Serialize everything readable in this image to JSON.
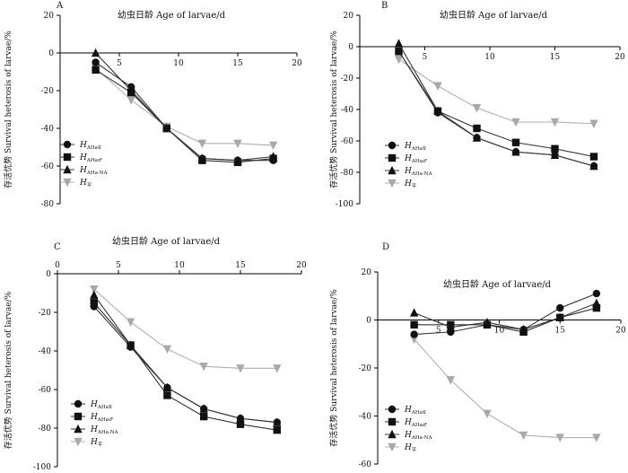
{
  "chart_data": [
    {
      "type": "line",
      "panel": "A",
      "title": "",
      "xlabel": "幼虫日龄 Age of larvae/d",
      "ylabel": "存活优势 Survival heterosis of larvae/%",
      "xlim": [
        0,
        20
      ],
      "ylim": [
        -80,
        20
      ],
      "xticks": [
        5,
        10,
        15,
        20
      ],
      "yticks": [
        20,
        0,
        -20,
        -40,
        -60,
        -80
      ],
      "legend_position": "bottom-left",
      "series": [
        {
          "name": "H",
          "sub": "AHa♀",
          "marker": "circle",
          "x": [
            3,
            6,
            9,
            12,
            15,
            18
          ],
          "values": [
            -5,
            -18,
            -40,
            -56,
            -57,
            -57
          ]
        },
        {
          "name": "H",
          "sub": "AHa♂",
          "marker": "square",
          "x": [
            3,
            6,
            9,
            12,
            15,
            18
          ],
          "values": [
            -9,
            -21,
            -40,
            -57,
            -58,
            -56
          ]
        },
        {
          "name": "H",
          "sub": "AHa-NA",
          "marker": "triangle",
          "x": [
            3,
            6,
            9,
            12,
            15,
            18
          ],
          "values": [
            0,
            -20,
            -40,
            -56,
            -57,
            -55
          ]
        },
        {
          "name": "H",
          "sub": "平",
          "marker": "triangle-down",
          "x": [
            3,
            6,
            9,
            12,
            15,
            18
          ],
          "values": [
            -8,
            -25,
            -39,
            -48,
            -48,
            -49
          ]
        }
      ]
    },
    {
      "type": "line",
      "panel": "B",
      "title": "",
      "xlabel": "幼虫日龄 Age of larvae/d",
      "ylabel": "存活优势 Survival heterosis of larvae/%",
      "xlim": [
        0,
        20
      ],
      "ylim": [
        -100,
        20
      ],
      "xticks": [
        5,
        10,
        15,
        20
      ],
      "yticks": [
        20,
        0,
        -20,
        -40,
        -60,
        -80,
        -100
      ],
      "legend_position": "bottom-left",
      "series": [
        {
          "name": "H",
          "sub": "AHa♀",
          "marker": "circle",
          "x": [
            3,
            6,
            9,
            12,
            15,
            18
          ],
          "values": [
            -3,
            -42,
            -58,
            -67,
            -69,
            -76
          ]
        },
        {
          "name": "H",
          "sub": "AHa♂",
          "marker": "square",
          "x": [
            3,
            6,
            9,
            12,
            15,
            18
          ],
          "values": [
            -3,
            -41,
            -52,
            -61,
            -65,
            -70
          ]
        },
        {
          "name": "H",
          "sub": "AHa-NA",
          "marker": "triangle",
          "x": [
            3,
            6,
            9,
            12,
            15,
            18
          ],
          "values": [
            2,
            -41,
            -58,
            -67,
            -69,
            -76
          ]
        },
        {
          "name": "H",
          "sub": "平",
          "marker": "triangle-down",
          "x": [
            3,
            6,
            9,
            12,
            15,
            18
          ],
          "values": [
            -8,
            -25,
            -39,
            -48,
            -48,
            -49
          ]
        }
      ]
    },
    {
      "type": "line",
      "panel": "C",
      "title": "",
      "xlabel": "幼虫日龄 Age of larvae/d",
      "ylabel": "存活优势 Survival heterosis of larvae/%",
      "xlim": [
        0,
        20
      ],
      "ylim": [
        -100,
        0
      ],
      "xticks": [
        0,
        5,
        10,
        15,
        20
      ],
      "yticks": [
        0,
        -20,
        -40,
        -60,
        -80,
        -100
      ],
      "legend_position": "bottom-left",
      "series": [
        {
          "name": "H",
          "sub": "AHa♀",
          "marker": "circle",
          "x": [
            3,
            6,
            9,
            12,
            15,
            18
          ],
          "values": [
            -17,
            -38,
            -59,
            -70,
            -75,
            -77
          ]
        },
        {
          "name": "H",
          "sub": "AHa♂",
          "marker": "square",
          "x": [
            3,
            6,
            9,
            12,
            15,
            18
          ],
          "values": [
            -15,
            -37,
            -63,
            -74,
            -78,
            -81
          ]
        },
        {
          "name": "H",
          "sub": "AHa-NA",
          "marker": "triangle",
          "x": [
            3,
            6,
            9,
            12,
            15,
            18
          ],
          "values": [
            -11,
            -37,
            -59,
            -70,
            -75,
            -77
          ]
        },
        {
          "name": "H",
          "sub": "平",
          "marker": "triangle-down",
          "x": [
            3,
            6,
            9,
            12,
            15,
            18
          ],
          "values": [
            -8,
            -25,
            -39,
            -48,
            -49,
            -49
          ]
        }
      ]
    },
    {
      "type": "line",
      "panel": "D",
      "title": "",
      "xlabel": "幼虫日龄 Age of larvae/d",
      "ylabel": "存活优势 Survival heterosis of larvae/%",
      "xlim": [
        0,
        20
      ],
      "ylim": [
        -60,
        20
      ],
      "xticks": [
        5,
        10,
        15,
        20
      ],
      "yticks": [
        20,
        0,
        -20,
        -40,
        -60
      ],
      "legend_position": "bottom-left",
      "series": [
        {
          "name": "H",
          "sub": "AHa♀",
          "marker": "circle",
          "x": [
            3,
            6,
            9,
            12,
            15,
            18
          ],
          "values": [
            -6,
            -5,
            -2,
            -4,
            5,
            11
          ]
        },
        {
          "name": "H",
          "sub": "AHa♂",
          "marker": "square",
          "x": [
            3,
            6,
            9,
            12,
            15,
            18
          ],
          "values": [
            -2,
            -2,
            -2,
            -5,
            1,
            5
          ]
        },
        {
          "name": "H",
          "sub": "AHa-NA",
          "marker": "triangle",
          "x": [
            3,
            6,
            9,
            12,
            15,
            18
          ],
          "values": [
            3,
            -3,
            -1,
            -4,
            1,
            7
          ]
        },
        {
          "name": "H",
          "sub": "平",
          "marker": "triangle-down",
          "x": [
            3,
            6,
            9,
            12,
            15,
            18
          ],
          "values": [
            -8,
            -25,
            -39,
            -48,
            -49,
            -49
          ]
        }
      ]
    }
  ]
}
